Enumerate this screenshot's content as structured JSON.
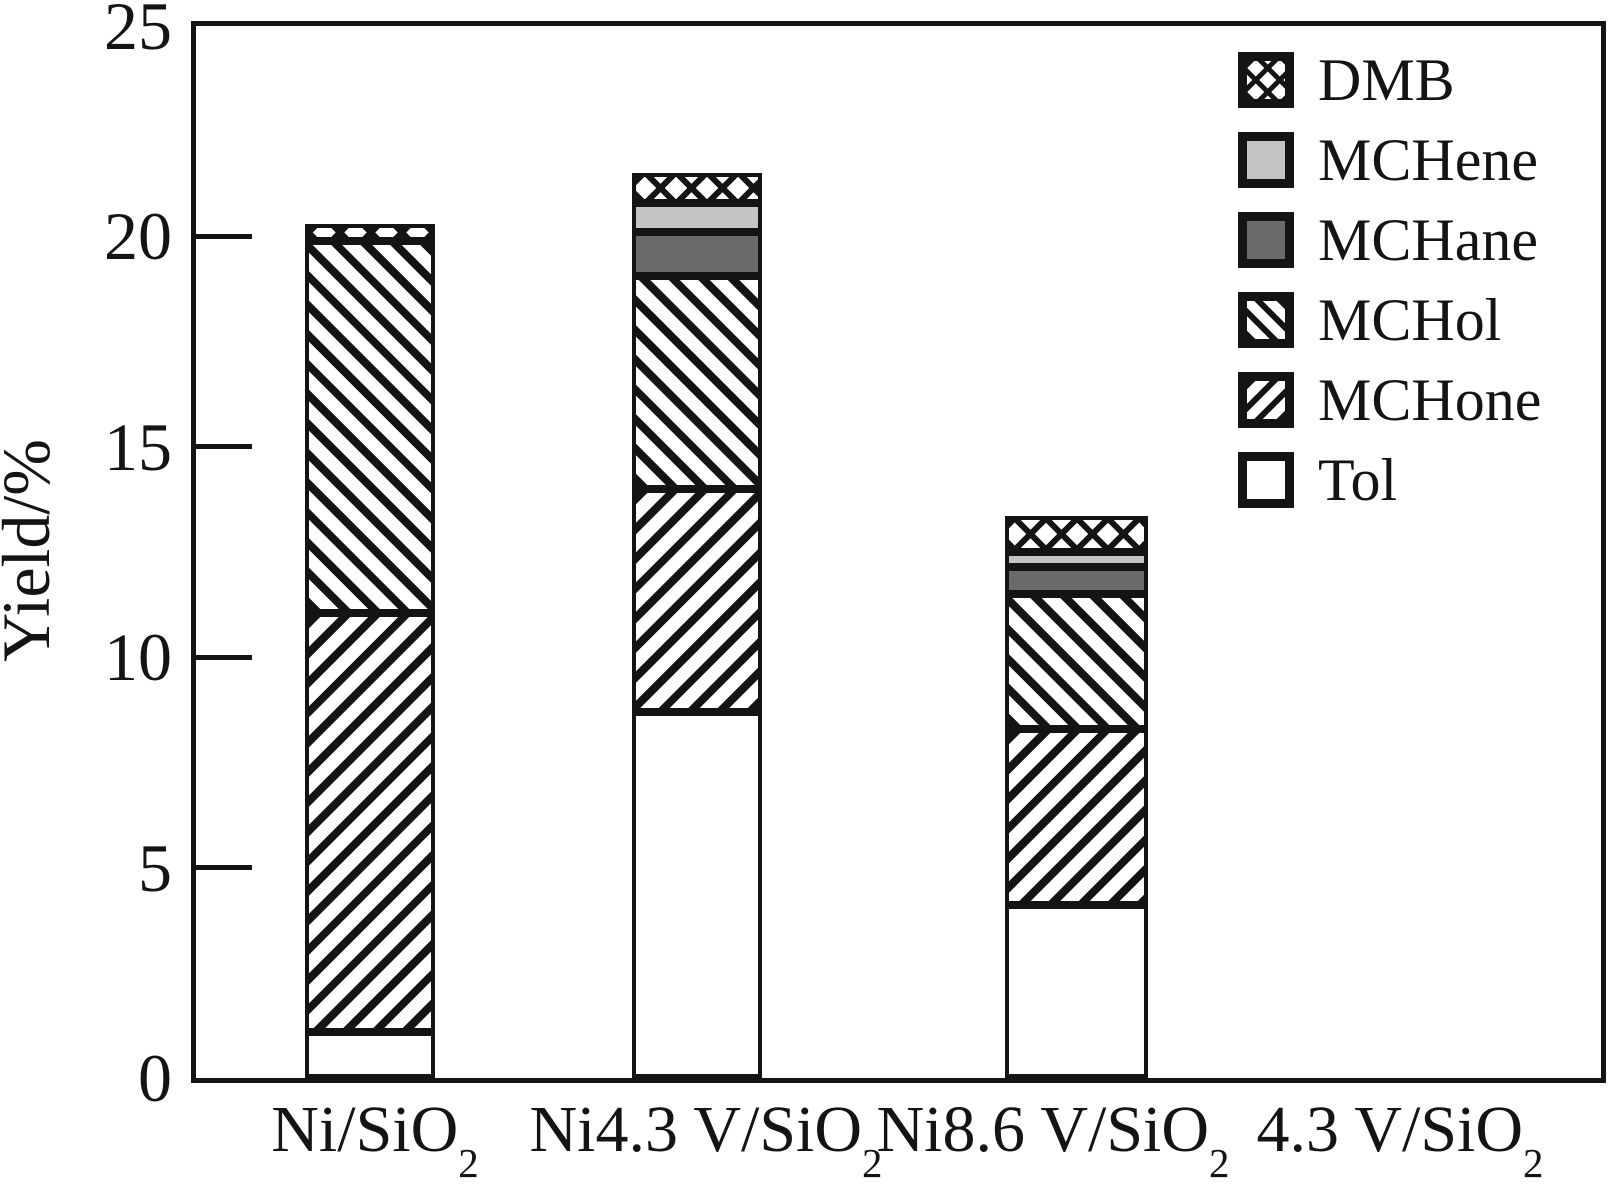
{
  "chart_data": {
    "type": "bar",
    "stacked": true,
    "title": "",
    "xlabel": "",
    "ylabel": "Yield/%",
    "ylim": [
      0,
      25
    ],
    "yticks": [
      0,
      5,
      10,
      15,
      20,
      25
    ],
    "grid": false,
    "categories": [
      {
        "pre": "Ni/SiO",
        "sub": "2"
      },
      {
        "pre": "Ni4.3 V/SiO",
        "sub": "2"
      },
      {
        "pre": "Ni8.6 V/SiO",
        "sub": "2"
      },
      {
        "pre": "4.3 V/SiO",
        "sub": "2"
      }
    ],
    "series_bottom_to_top": [
      {
        "name": "Tol",
        "pattern": "white",
        "color": "#ffffff",
        "values": [
          1.1,
          8.7,
          4.1,
          0
        ]
      },
      {
        "name": "MCHone",
        "pattern": "fwd",
        "color": "#141414",
        "values": [
          9.95,
          5.3,
          4.2,
          0
        ]
      },
      {
        "name": "MCHol",
        "pattern": "back",
        "color": "#141414",
        "values": [
          8.85,
          5.05,
          3.2,
          0
        ]
      },
      {
        "name": "MCHane",
        "pattern": "solid",
        "color": "#6a6a6a",
        "values": [
          0.0,
          1.05,
          0.65,
          0
        ]
      },
      {
        "name": "MCHene",
        "pattern": "solid",
        "color": "#c4c4c4",
        "values": [
          0.0,
          0.7,
          0.35,
          0
        ]
      },
      {
        "name": "DMB",
        "pattern": "cross",
        "color": "#141414",
        "values": [
          0.4,
          0.7,
          0.85,
          0
        ]
      }
    ],
    "stack_totals": [
      20.3,
      21.5,
      13.35,
      0
    ],
    "legend": {
      "position": "top-right",
      "entries_top_to_bottom": [
        "DMB",
        "MCHene",
        "MCHane",
        "MCHol",
        "MCHone",
        "Tol"
      ]
    },
    "frame": "full-box",
    "accent_black": "#141414"
  }
}
